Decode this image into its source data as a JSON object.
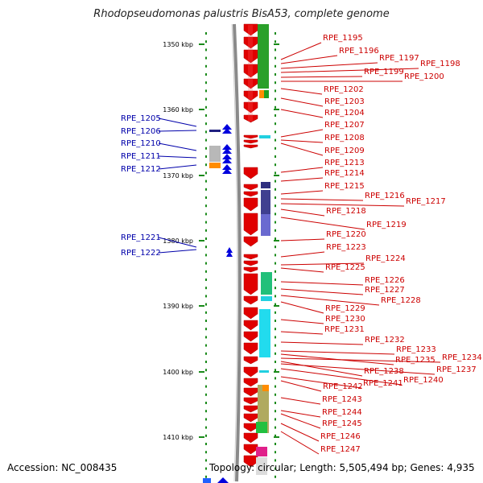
{
  "title": "Rhodopseudomonas palustris BisA53, complete genome",
  "footer": {
    "accession": "Accession: NC_008435",
    "topology": "Topology: circular; Length: 5,505,494 bp; Genes: 4,935"
  },
  "colors": {
    "forward_gene": "#e00000",
    "reverse_gene": "#0000dd",
    "right_label": "#cc0000",
    "left_label": "#0000aa"
  },
  "kbp_ticks": [
    "1350 kbp",
    "1360 kbp",
    "1370 kbp",
    "1380 kbp",
    "1390 kbp",
    "1400 kbp",
    "1410 kbp"
  ],
  "left_genes": [
    "RPE_1205",
    "RPE_1206",
    "RPE_1210",
    "RPE_1211",
    "RPE_1212",
    "RPE_1221",
    "RPE_1222"
  ],
  "right_genes": [
    "RPE_1195",
    "RPE_1196",
    "RPE_1197",
    "RPE_1198",
    "RPE_1199",
    "RPE_1200",
    "RPE_1202",
    "RPE_1203",
    "RPE_1204",
    "RPE_1207",
    "RPE_1208",
    "RPE_1209",
    "RPE_1213",
    "RPE_1214",
    "RPE_1215",
    "RPE_1216",
    "RPE_1217",
    "RPE_1218",
    "RPE_1219",
    "RPE_1220",
    "RPE_1223",
    "RPE_1224",
    "RPE_1225",
    "RPE_1226",
    "RPE_1227",
    "RPE_1228",
    "RPE_1229",
    "RPE_1230",
    "RPE_1231",
    "RPE_1232",
    "RPE_1233",
    "RPE_1234",
    "RPE_1235",
    "RPE_1237",
    "RPE_1238",
    "RPE_1240",
    "RPE_1241",
    "RPE_1242",
    "RPE_1243",
    "RPE_1244",
    "RPE_1245",
    "RPE_1246",
    "RPE_1247"
  ]
}
